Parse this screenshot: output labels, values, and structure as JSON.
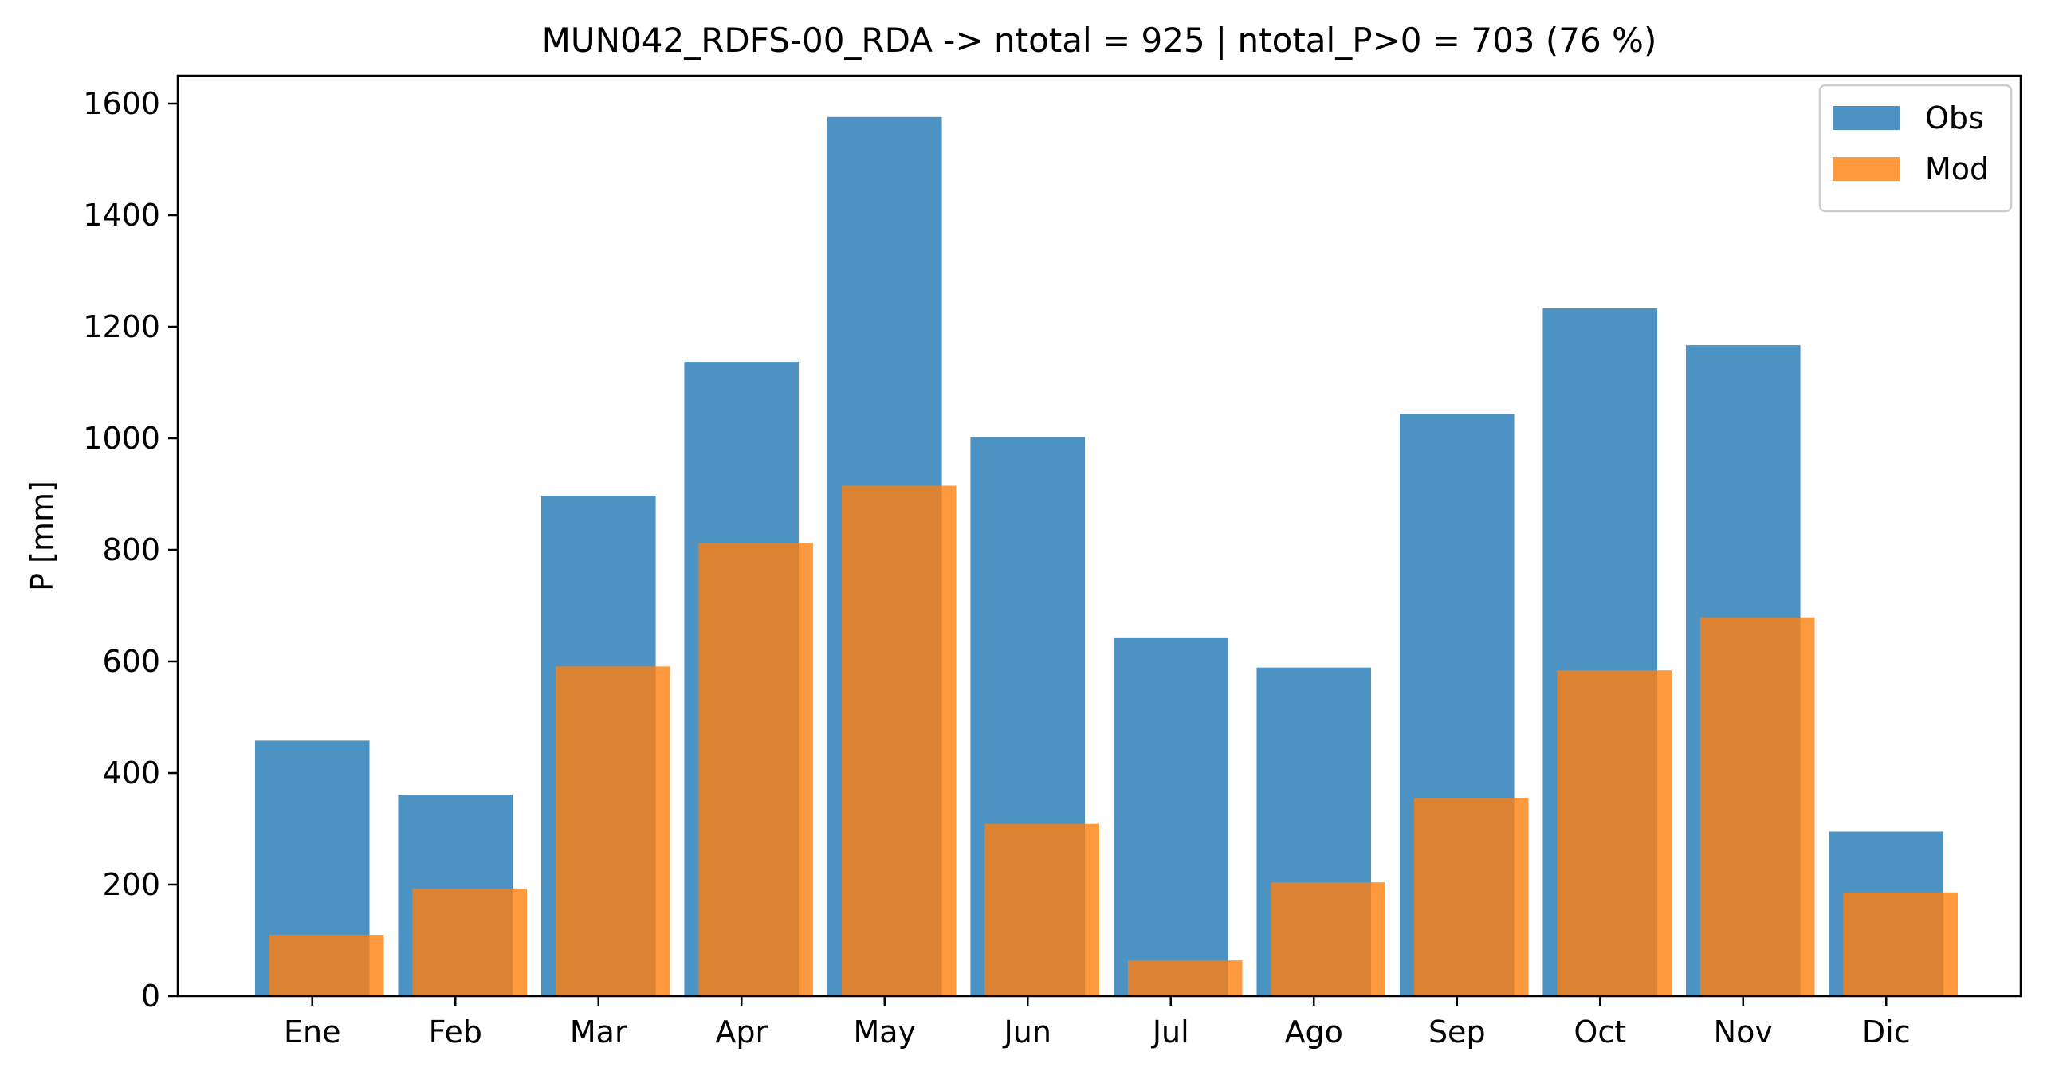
{
  "chart_data": {
    "type": "bar",
    "title": "MUN042_RDFS-00_RDA -> ntotal = 925 | ntotal_P>0 = 703 (76 %)",
    "xlabel": "",
    "ylabel": "P [mm]",
    "ylim": [
      0,
      1650
    ],
    "yticks": [
      0,
      200,
      400,
      600,
      800,
      1000,
      1200,
      1400,
      1600
    ],
    "categories": [
      "Ene",
      "Feb",
      "Mar",
      "Apr",
      "May",
      "Jun",
      "Jul",
      "Ago",
      "Sep",
      "Oct",
      "Nov",
      "Dic"
    ],
    "grid": false,
    "legend_position": "top-right",
    "series": [
      {
        "name": "Obs",
        "color": "#1f77b4",
        "opacity": 0.8,
        "values": [
          458,
          361,
          897,
          1137,
          1576,
          1002,
          643,
          589,
          1044,
          1233,
          1167,
          295
        ]
      },
      {
        "name": "Mod",
        "color": "#ff7f0e",
        "opacity": 0.8,
        "values": [
          110,
          193,
          591,
          812,
          915,
          309,
          64,
          204,
          355,
          584,
          679,
          186
        ]
      }
    ]
  }
}
